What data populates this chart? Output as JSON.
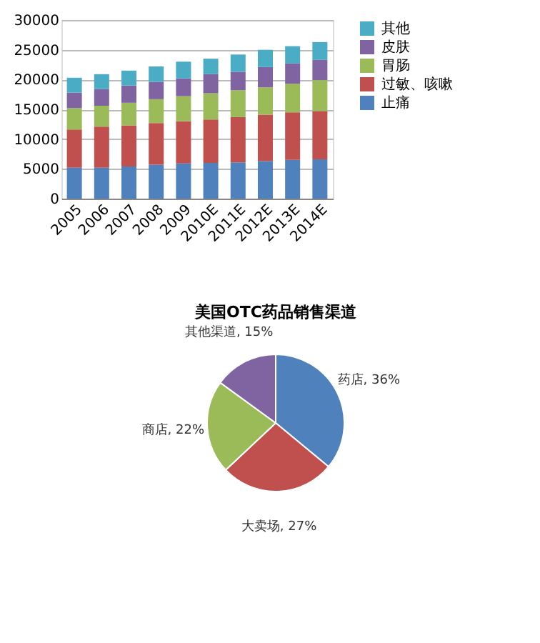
{
  "chart_data": [
    {
      "type": "bar",
      "stacked": true,
      "categories": [
        "2005",
        "2006",
        "2007",
        "2008",
        "2009",
        "2010E",
        "2011E",
        "2012E",
        "2013E",
        "2014E"
      ],
      "series": [
        {
          "name": "止痛",
          "color": "#4f81bd",
          "values": [
            5200,
            5200,
            5400,
            5700,
            5900,
            6000,
            6100,
            6300,
            6500,
            6600
          ]
        },
        {
          "name": "过敏、咳嗽",
          "color": "#c0504d",
          "values": [
            6400,
            6900,
            6900,
            7000,
            7100,
            7300,
            7600,
            7800,
            8000,
            8100
          ]
        },
        {
          "name": "胃肠",
          "color": "#9bbb59",
          "values": [
            3600,
            3500,
            3800,
            4000,
            4200,
            4400,
            4500,
            4600,
            4800,
            5200
          ]
        },
        {
          "name": "皮肤",
          "color": "#8064a2",
          "values": [
            2600,
            2800,
            2900,
            2900,
            3000,
            3200,
            3100,
            3400,
            3400,
            3400
          ]
        },
        {
          "name": "其他",
          "color": "#4bacc6",
          "values": [
            2500,
            2500,
            2500,
            2600,
            2800,
            2600,
            2900,
            2900,
            2900,
            3000
          ]
        }
      ],
      "ylim": [
        0,
        30000
      ],
      "yticks": [
        0,
        5000,
        10000,
        15000,
        20000,
        25000,
        30000
      ],
      "grid": "y",
      "legend": "right"
    },
    {
      "type": "pie",
      "title": "美国OTC药品销售渠道",
      "categories": [
        "药店",
        "大卖场",
        "商店",
        "其他渠道"
      ],
      "values": [
        36,
        27,
        22,
        15
      ],
      "value_labels": [
        "36%",
        "27%",
        "22%",
        "15%"
      ],
      "colors": [
        "#4f81bd",
        "#c0504d",
        "#9bbb59",
        "#8064a2"
      ],
      "legend": false
    }
  ]
}
